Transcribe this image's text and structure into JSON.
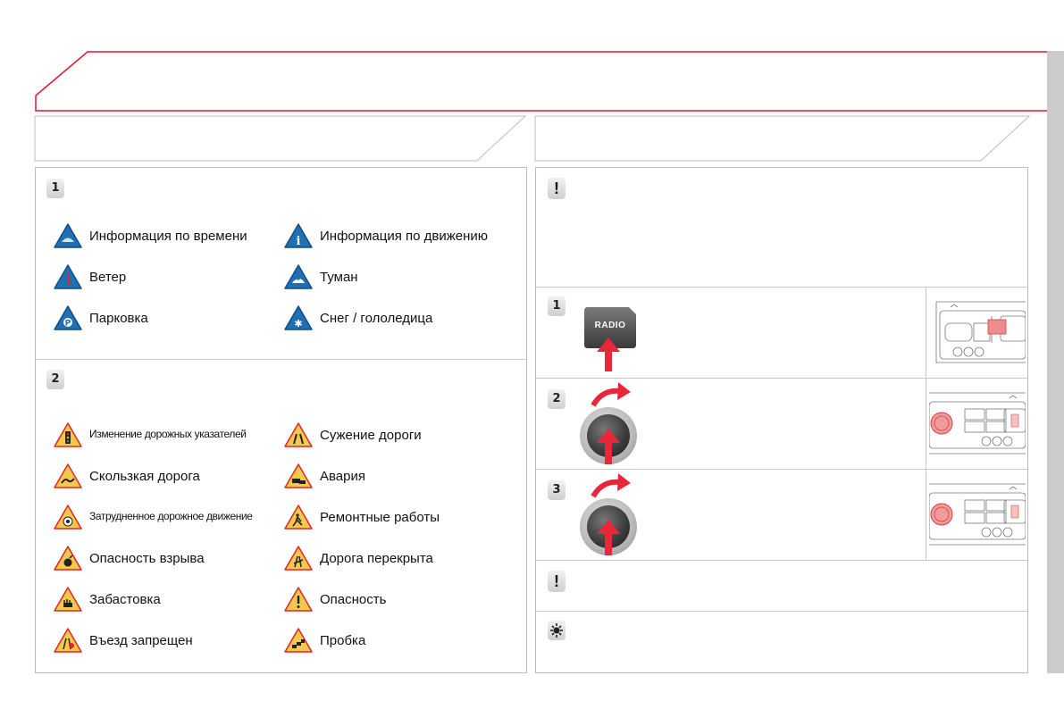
{
  "left_panel": {
    "section1": {
      "badge": "1",
      "items": [
        {
          "icon": "weather-info-icon",
          "label": "Информация по времени"
        },
        {
          "icon": "traffic-info-icon",
          "label": "Информация по движению"
        },
        {
          "icon": "wind-icon",
          "label": "Ветер"
        },
        {
          "icon": "fog-icon",
          "label": "Туман"
        },
        {
          "icon": "parking-icon",
          "label": "Парковка"
        },
        {
          "icon": "snow-ice-icon",
          "label": "Снег / гололедица"
        }
      ]
    },
    "section2": {
      "badge": "2",
      "items": [
        {
          "icon": "traffic-lights-icon",
          "label": "Изменение дорожных указателей"
        },
        {
          "icon": "road-narrows-icon",
          "label": "Сужение дороги"
        },
        {
          "icon": "slippery-road-icon",
          "label": "Скользкая дорога"
        },
        {
          "icon": "accident-icon",
          "label": "Авария"
        },
        {
          "icon": "heavy-traffic-icon",
          "label": "Затрудненное дорожное движение"
        },
        {
          "icon": "roadworks-icon",
          "label": "Ремонтные работы"
        },
        {
          "icon": "explosion-danger-icon",
          "label": "Опасность взрыва"
        },
        {
          "icon": "road-closed-icon",
          "label": "Дорога перекрыта"
        },
        {
          "icon": "strike-icon",
          "label": "Забастовка"
        },
        {
          "icon": "danger-icon",
          "label": "Опасность"
        },
        {
          "icon": "no-entry-icon",
          "label": "Въезд запрещен"
        },
        {
          "icon": "traffic-jam-icon",
          "label": "Пробка"
        }
      ]
    }
  },
  "right_panel": {
    "warning_badge": "!",
    "steps": [
      {
        "badge": "1",
        "button_label": "RADIO"
      },
      {
        "badge": "2"
      },
      {
        "badge": "3"
      }
    ],
    "warning2_badge": "!",
    "tip_icon": "light-bulb-icon"
  },
  "colors": {
    "header_red": "#e3172a",
    "sign_red": "#e22626",
    "sign_blue": "#1f6fb2",
    "arrow_red": "#e8283a"
  }
}
